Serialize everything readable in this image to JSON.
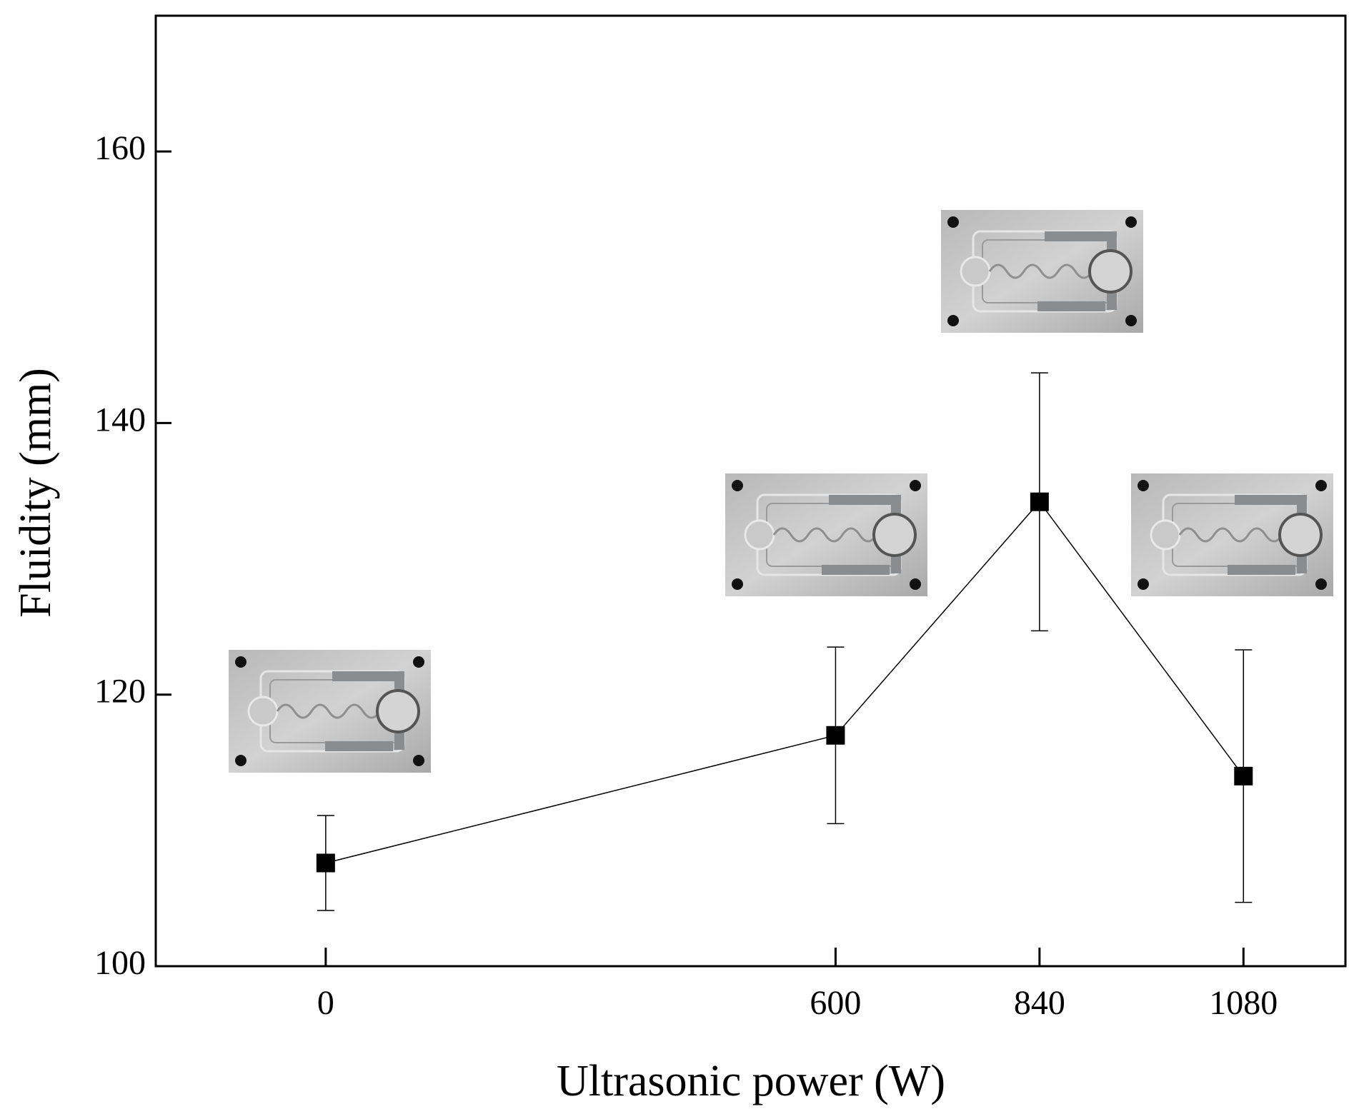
{
  "chart_data": {
    "type": "line",
    "x_label": "Ultrasonic power (W)",
    "y_label": "Fluidity (mm)",
    "x": [
      0,
      600,
      840,
      1080
    ],
    "values": [
      107.6,
      117.0,
      134.2,
      114.0
    ],
    "errors": [
      3.5,
      6.5,
      9.5,
      9.3
    ],
    "color": "#000000",
    "xlim": [
      -200,
      1200
    ],
    "xticks": [
      0,
      600,
      840,
      1080
    ],
    "ylim": [
      100,
      170
    ],
    "yticks": [
      100,
      120,
      140,
      160
    ]
  }
}
